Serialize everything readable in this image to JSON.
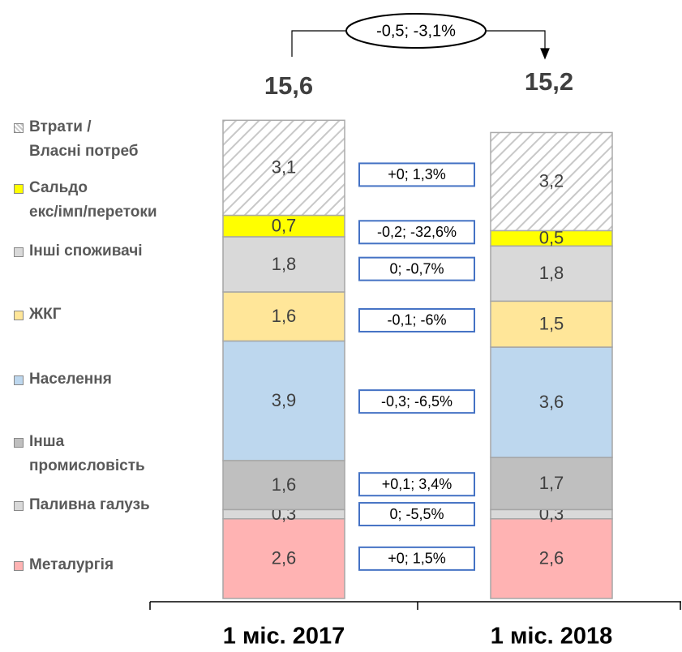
{
  "chart_data": {
    "type": "stacked_bar",
    "categories": [
      "1 міс. 2017",
      "1 міс. 2018"
    ],
    "series": [
      {
        "name": "Металургія",
        "color": "#ffb3b3",
        "values": [
          2.6,
          2.6
        ],
        "value_labels": [
          "2,6",
          "2,6"
        ]
      },
      {
        "name": "Паливна галузь",
        "color": "#d9d9d9",
        "values": [
          0.3,
          0.3
        ],
        "value_labels": [
          "0,3",
          "0,3"
        ]
      },
      {
        "name": "Інша\nпромисловість",
        "color": "#bfbfbf",
        "values": [
          1.6,
          1.7
        ],
        "value_labels": [
          "1,6",
          "1,7"
        ]
      },
      {
        "name": "Населення",
        "color": "#bdd7ee",
        "values": [
          3.9,
          3.6
        ],
        "value_labels": [
          "3,9",
          "3,6"
        ]
      },
      {
        "name": "ЖКГ",
        "color": "#ffe699",
        "values": [
          1.6,
          1.5
        ],
        "value_labels": [
          "1,6",
          "1,5"
        ]
      },
      {
        "name": "Інші споживачі",
        "color": "#d9d9d9",
        "values": [
          1.8,
          1.8
        ],
        "value_labels": [
          "1,8",
          "1,8"
        ]
      },
      {
        "name": "Сальдо\nекс/імп/перетоки",
        "color": "#ffff00",
        "values": [
          0.7,
          0.5
        ],
        "value_labels": [
          "0,7",
          "0,5"
        ]
      },
      {
        "name": "Втрати /\nВласні потреб",
        "color": "#ffffff",
        "hatch": true,
        "values": [
          3.1,
          3.2
        ],
        "value_labels": [
          "3,1",
          "3,2"
        ]
      }
    ],
    "totals": [
      15.6,
      15.2
    ],
    "total_labels": [
      "15,6",
      "15,2"
    ],
    "changes": [
      "+0; 1,5%",
      "0; -5,5%",
      "+0,1; 3,4%",
      "-0,3; -6,5%",
      "-0,1; -6%",
      "0; -0,7%",
      "-0,2; -32,6%",
      "+0; 1,3%"
    ],
    "total_change": "-0,5; -3,1%"
  }
}
